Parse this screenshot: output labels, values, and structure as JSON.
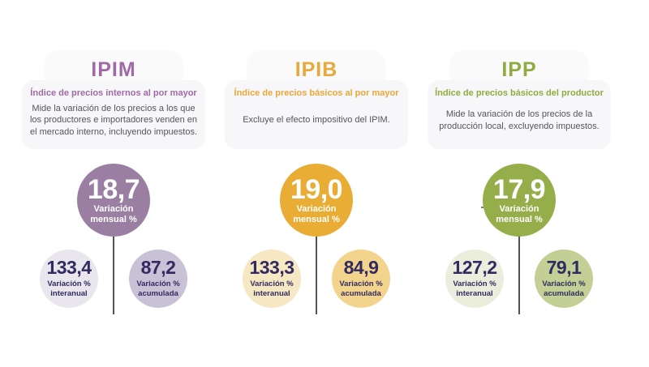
{
  "palette": {
    "background": "#ffffff",
    "card_bg": "#f7f6f8",
    "tab_bg": "#fbfafb",
    "number_text": "#322a60",
    "body_text": "#56565a",
    "line": "#51515f"
  },
  "chart_data": {
    "type": "table",
    "title": "",
    "categories": [
      "IPIM",
      "IPIB",
      "IPP"
    ],
    "series": [
      {
        "name": "Variación mensual %",
        "values": [
          18.7,
          19.0,
          17.9
        ]
      },
      {
        "name": "Variación % interanual",
        "values": [
          133.4,
          133.3,
          127.2
        ]
      },
      {
        "name": "Variación % acumulada",
        "values": [
          87.2,
          84.9,
          79.1
        ]
      }
    ],
    "notes": "Infographic of three wholesale/producer price indices; values use comma decimal separator"
  },
  "columns": [
    {
      "title": "IPIM",
      "subtitle": "Índice de precios internos al por mayor",
      "description": "Mide la variación de los precios a los que los productores e importadores venden en el mercado interno, incluyendo impuestos.",
      "monthly": {
        "value": "18,7",
        "label": "Variación mensual %"
      },
      "interannual": {
        "value": "133,4",
        "label": "Variación % interanual"
      },
      "accumulated": {
        "value": "87,2",
        "label": "Variación % acumulada"
      },
      "colors": {
        "accent": "#9e6ba4",
        "big_circle": "#9a7fa3",
        "interannual_circle": "#e9e7ed",
        "accumulated_circle": "#c9c2d7"
      }
    },
    {
      "title": "IPIB",
      "subtitle": "Índice de precios básicos al por mayor",
      "description": "Excluye el efecto impositivo del IPIM.",
      "monthly": {
        "value": "19,0",
        "label": "Variación mensual %"
      },
      "interannual": {
        "value": "133,3",
        "label": "Variación % interanual"
      },
      "accumulated": {
        "value": "84,9",
        "label": "Variación % acumulada"
      },
      "colors": {
        "accent": "#e8a83b",
        "big_circle": "#e9ac35",
        "interannual_circle": "#f5e8c3",
        "accumulated_circle": "#f3d48d"
      }
    },
    {
      "title": "IPP",
      "subtitle": "Índice de precios básicos del productor",
      "description": "Mide la variación de los precios de la producción local, excluyendo impuestos.",
      "monthly": {
        "value": "17,9",
        "label": "Variación mensual %"
      },
      "interannual": {
        "value": "127,2",
        "label": "Variación % interanual"
      },
      "accumulated": {
        "value": "79,1",
        "label": "Variación % acumulada"
      },
      "colors": {
        "accent": "#90ab42",
        "big_circle": "#95ae4a",
        "interannual_circle": "#ebeedd",
        "accumulated_circle": "#c3cf95"
      }
    }
  ]
}
